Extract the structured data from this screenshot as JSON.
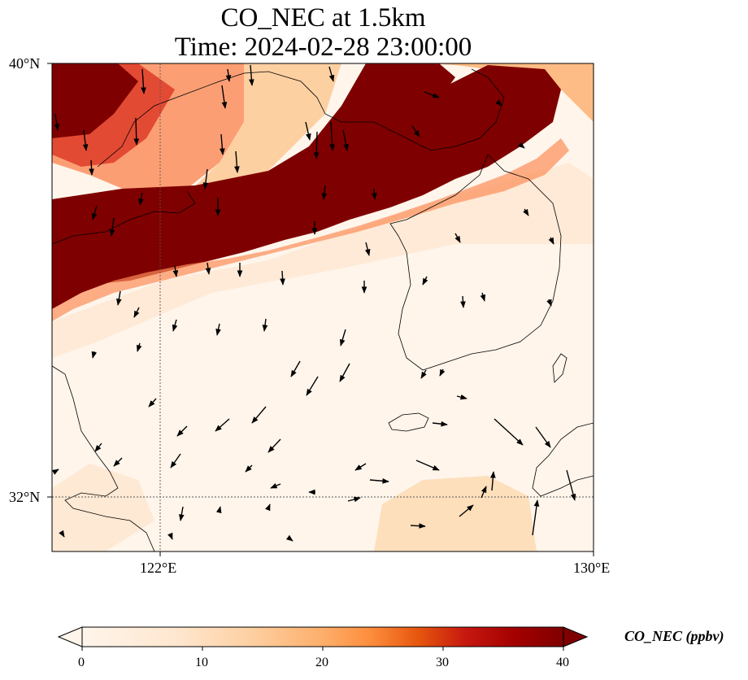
{
  "title": {
    "line1": "CO_NEC at 1.5km",
    "line2": "Time: 2024-02-28 23:00:00"
  },
  "axes": {
    "lat_ticks": [
      {
        "label": "40°N",
        "value": 40
      },
      {
        "label": "32°N",
        "value": 32
      }
    ],
    "lon_ticks": [
      {
        "label": "122°E",
        "value": 122
      },
      {
        "label": "130°E",
        "value": 130
      }
    ],
    "lon_range": [
      120,
      130
    ],
    "lat_range": [
      31,
      40
    ]
  },
  "colorbar": {
    "label": "CO_NEC (ppbv)",
    "ticks": [
      "0",
      "10",
      "20",
      "30",
      "40"
    ],
    "range": [
      0,
      40
    ],
    "colormap": [
      "#fff5eb",
      "#fdd0a2",
      "#fd8d3c",
      "#d94801",
      "#a50f15",
      "#7f0000"
    ]
  },
  "colors": {
    "high": "#7f0000",
    "background": "#fff5eb"
  }
}
